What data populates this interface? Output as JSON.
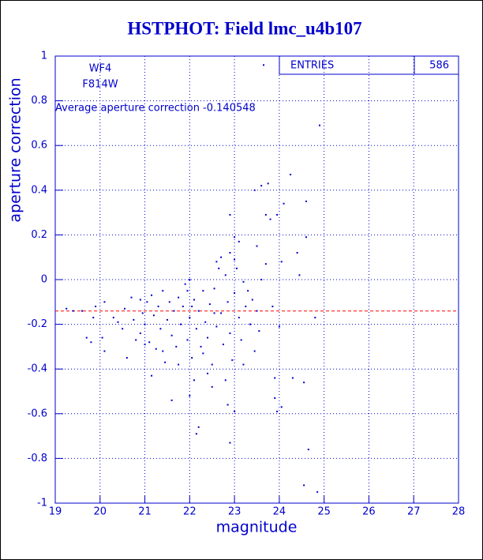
{
  "chart_data": {
    "type": "scatter",
    "title": "HSTPHOT: Field lmc_u4b107",
    "x_label": "magnitude",
    "y_label": "aperture correction",
    "annotations": [
      "WF4",
      "F814W",
      "Average aperture correction -0.140548"
    ],
    "stats": {
      "label": "ENTRIES",
      "value": 586
    },
    "hline": {
      "value": -0.140548,
      "color": "#ff0000"
    },
    "xlim": [
      19,
      28
    ],
    "ylim": [
      -1,
      1
    ],
    "xticks": [
      19,
      20,
      21,
      22,
      23,
      24,
      25,
      26,
      27,
      28
    ],
    "yticks": [
      -1,
      -0.8,
      -0.6,
      -0.4,
      -0.2,
      0,
      0.2,
      0.4,
      0.6,
      0.8,
      1
    ],
    "grid": true,
    "color": "#0000cc",
    "x": [
      23.65,
      24.9,
      24.25,
      23.6,
      23.45,
      23.75,
      22.9,
      24.1,
      24.6,
      24.6,
      23.8,
      23.95,
      23.7,
      24.4,
      24.45,
      23.0,
      23.1,
      23.5,
      24.8,
      24.05,
      23.95,
      23.9,
      24.3,
      24.55,
      24.65,
      24.55,
      24.85,
      22.2,
      22.15,
      22.9,
      22.85,
      23.0,
      21.6,
      22.0,
      22.5,
      21.15,
      23.9,
      23.2,
      23.45,
      24.0,
      23.85,
      24.05,
      23.7,
      23.6,
      23.3,
      19.25,
      19.4,
      19.6,
      19.7,
      19.8,
      19.85,
      19.9,
      20.05,
      20.1,
      20.1,
      20.3,
      20.4,
      20.5,
      20.55,
      20.6,
      20.7,
      20.75,
      20.8,
      20.9,
      20.95,
      21.0,
      21.05,
      21.1,
      21.15,
      21.2,
      21.25,
      21.3,
      21.35,
      21.4,
      21.45,
      21.5,
      21.55,
      21.6,
      21.65,
      21.7,
      21.75,
      21.8,
      21.85,
      21.9,
      21.95,
      22.0,
      22.05,
      22.1,
      22.15,
      22.2,
      22.25,
      22.3,
      22.35,
      22.4,
      22.45,
      22.5,
      22.55,
      22.6,
      22.65,
      22.7,
      22.75,
      22.8,
      22.85,
      22.9,
      22.95,
      23.0,
      23.05,
      23.1,
      23.15,
      23.2,
      23.25,
      23.35,
      23.4,
      23.5,
      23.55,
      22.7,
      22.9,
      22.6,
      23.0,
      22.4,
      22.1,
      22.8,
      21.4,
      21.0,
      20.9,
      22.0,
      21.95,
      22.3,
      21.75,
      22.55,
      22.05
    ],
    "values": [
      0.96,
      0.69,
      0.47,
      0.42,
      0.4,
      0.43,
      0.29,
      0.34,
      0.35,
      0.19,
      0.27,
      0.29,
      0.29,
      0.12,
      0.02,
      0.19,
      0.17,
      0.15,
      -0.17,
      -0.57,
      -0.59,
      -0.53,
      -0.44,
      -0.46,
      -0.76,
      -0.92,
      -0.95,
      -0.66,
      -0.69,
      -0.73,
      -0.56,
      -0.59,
      -0.54,
      -0.52,
      -0.48,
      -0.43,
      -0.44,
      -0.38,
      -0.32,
      -0.21,
      -0.12,
      0.08,
      0.07,
      0.0,
      -0.05,
      -0.13,
      -0.14,
      -0.14,
      -0.26,
      -0.28,
      -0.17,
      -0.12,
      -0.26,
      -0.32,
      -0.1,
      -0.17,
      -0.19,
      -0.22,
      -0.13,
      -0.35,
      -0.08,
      -0.18,
      -0.27,
      -0.24,
      -0.15,
      -0.2,
      -0.1,
      -0.28,
      -0.07,
      -0.16,
      -0.31,
      -0.12,
      -0.22,
      -0.05,
      -0.37,
      -0.18,
      -0.1,
      -0.25,
      -0.14,
      -0.3,
      -0.08,
      -0.2,
      -0.12,
      -0.02,
      -0.27,
      -0.17,
      -0.35,
      -0.09,
      -0.22,
      -0.14,
      -0.3,
      -0.05,
      -0.19,
      -0.26,
      -0.11,
      -0.38,
      -0.04,
      -0.21,
      0.05,
      -0.15,
      -0.29,
      0.02,
      -0.1,
      -0.24,
      -0.36,
      -0.06,
      0.05,
      -0.17,
      -0.27,
      -0.01,
      -0.12,
      -0.2,
      -0.09,
      -0.14,
      -0.23,
      0.1,
      0.12,
      0.08,
      0.09,
      -0.42,
      -0.45,
      -0.45,
      -0.32,
      -0.29,
      -0.09,
      0.0,
      -0.05,
      -0.33,
      -0.38,
      -0.15,
      -0.12
    ]
  }
}
